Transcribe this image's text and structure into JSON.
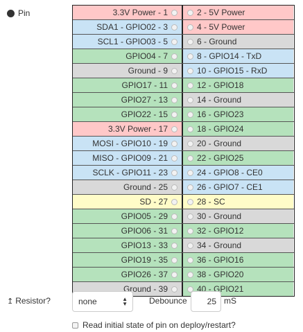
{
  "pin_label": "Pin",
  "rows": [
    {
      "left": {
        "label": "3.3V Power - 1",
        "color": "power"
      },
      "right": {
        "label": "2 - 5V Power",
        "color": "power"
      }
    },
    {
      "left": {
        "label": "SDA1 - GPIO02 - 3",
        "color": "blue"
      },
      "right": {
        "label": "4 - 5V Power",
        "color": "power"
      }
    },
    {
      "left": {
        "label": "SCL1 - GPIO03 - 5",
        "color": "blue"
      },
      "right": {
        "label": "6 - Ground",
        "color": "ground"
      }
    },
    {
      "left": {
        "label": "GPIO04 - 7",
        "color": "green"
      },
      "right": {
        "label": "8 - GPIO14 - TxD",
        "color": "blue"
      }
    },
    {
      "left": {
        "label": "Ground - 9",
        "color": "ground"
      },
      "right": {
        "label": "10 - GPIO15 - RxD",
        "color": "blue"
      }
    },
    {
      "left": {
        "label": "GPIO17 - 11",
        "color": "green"
      },
      "right": {
        "label": "12 - GPIO18",
        "color": "green"
      }
    },
    {
      "left": {
        "label": "GPIO27 - 13",
        "color": "green"
      },
      "right": {
        "label": "14 - Ground",
        "color": "ground"
      }
    },
    {
      "left": {
        "label": "GPIO22 - 15",
        "color": "green"
      },
      "right": {
        "label": "16 - GPIO23",
        "color": "green"
      }
    },
    {
      "left": {
        "label": "3.3V Power - 17",
        "color": "power"
      },
      "right": {
        "label": "18 - GPIO24",
        "color": "green"
      }
    },
    {
      "left": {
        "label": "MOSI - GPIO10 - 19",
        "color": "blue"
      },
      "right": {
        "label": "20 - Ground",
        "color": "ground"
      }
    },
    {
      "left": {
        "label": "MISO - GPIO09 - 21",
        "color": "blue"
      },
      "right": {
        "label": "22 - GPIO25",
        "color": "green"
      }
    },
    {
      "left": {
        "label": "SCLK - GPIO11 - 23",
        "color": "blue"
      },
      "right": {
        "label": "24 - GPIO8 - CE0",
        "color": "blue"
      }
    },
    {
      "left": {
        "label": "Ground - 25",
        "color": "ground"
      },
      "right": {
        "label": "26 - GPIO7 - CE1",
        "color": "blue"
      }
    },
    {
      "left": {
        "label": "SD - 27",
        "color": "yellow"
      },
      "right": {
        "label": "28 - SC",
        "color": "yellow"
      }
    },
    {
      "left": {
        "label": "GPIO05 - 29",
        "color": "green"
      },
      "right": {
        "label": "30 - Ground",
        "color": "ground"
      }
    },
    {
      "left": {
        "label": "GPIO06 - 31",
        "color": "green"
      },
      "right": {
        "label": "32 - GPIO12",
        "color": "green"
      }
    },
    {
      "left": {
        "label": "GPIO13 - 33",
        "color": "green"
      },
      "right": {
        "label": "34 - Ground",
        "color": "ground"
      }
    },
    {
      "left": {
        "label": "GPIO19 - 35",
        "color": "green"
      },
      "right": {
        "label": "36 - GPIO16",
        "color": "green"
      }
    },
    {
      "left": {
        "label": "GPIO26 - 37",
        "color": "green"
      },
      "right": {
        "label": "38 - GPIO20",
        "color": "green"
      }
    },
    {
      "left": {
        "label": "Ground - 39",
        "color": "ground"
      },
      "right": {
        "label": "40 - GPIO21",
        "color": "green"
      }
    }
  ],
  "resistor": {
    "label": "Resistor?",
    "selected": "none",
    "icon": "arrow-up-icon"
  },
  "debounce": {
    "label": "Debounce",
    "value": "25",
    "unit": "mS"
  },
  "read_initial": {
    "label": "Read initial state of pin on deploy/restart?",
    "checked": false
  },
  "colors": {
    "power": "#ffc8c8",
    "blue": "#c9e3f5",
    "ground": "#d9d9d9",
    "green": "#b5e2bc",
    "yellow": "#fffcc8"
  }
}
